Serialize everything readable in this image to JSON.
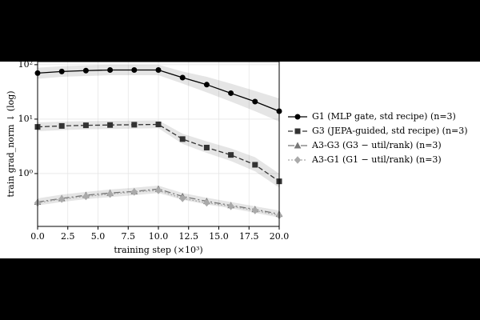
{
  "chart_data": {
    "type": "line",
    "x_label": "training step (×10³)",
    "y_label": "train grad_norm ↓  (log)",
    "log_y": true,
    "grid": true,
    "legend_position": "right",
    "x": [
      0,
      2,
      4,
      6,
      8,
      10,
      12,
      14,
      16,
      18,
      20
    ],
    "xlim": [
      0,
      20
    ],
    "xticks": [
      {
        "value": 0,
        "label": "0.0"
      },
      {
        "value": 2.5,
        "label": "2.5"
      },
      {
        "value": 5,
        "label": "5.0"
      },
      {
        "value": 7.5,
        "label": "7.5"
      },
      {
        "value": 10,
        "label": "10.0"
      },
      {
        "value": 12.5,
        "label": "12.5"
      },
      {
        "value": 15,
        "label": "15.0"
      },
      {
        "value": 17.5,
        "label": "17.5"
      },
      {
        "value": 20,
        "label": "20.0"
      }
    ],
    "ylim": [
      0.107,
      114
    ],
    "yticks": [
      {
        "value": 1,
        "label": "10⁰"
      },
      {
        "value": 10,
        "label": "10¹"
      },
      {
        "value": 100,
        "label": "10²"
      }
    ],
    "series": [
      {
        "name": "G1 (MLP gate, std recipe) (n=3)",
        "color": "#000000",
        "marker": "circle",
        "dash": "none",
        "values": [
          70,
          75,
          78,
          80,
          80,
          80,
          58,
          43,
          30,
          21,
          14
        ],
        "lower": [
          55,
          60,
          62,
          64,
          64,
          64,
          45,
          31,
          21,
          14,
          9
        ],
        "upper": [
          88,
          94,
          97,
          100,
          100,
          100,
          75,
          60,
          45,
          33,
          24
        ]
      },
      {
        "name": "G3 (JEPA-guided, std recipe) (n=3)",
        "color": "#333333",
        "marker": "square",
        "dash": "6,3",
        "values": [
          7.2,
          7.5,
          7.7,
          7.8,
          7.9,
          8.0,
          4.3,
          3.0,
          2.2,
          1.45,
          0.72
        ],
        "lower": [
          6.0,
          6.3,
          6.5,
          6.6,
          6.7,
          6.8,
          3.5,
          2.4,
          1.7,
          1.1,
          0.55
        ],
        "upper": [
          8.7,
          9.0,
          9.2,
          9.3,
          9.4,
          9.5,
          5.4,
          3.9,
          2.9,
          2.0,
          1.0
        ]
      },
      {
        "name": "A3-G3 (G3 − util/rank) (n=3)",
        "color": "#777777",
        "marker": "triangle",
        "dash": "8,3,2,3",
        "values": [
          0.3,
          0.35,
          0.4,
          0.44,
          0.47,
          0.52,
          0.38,
          0.31,
          0.26,
          0.22,
          0.18
        ],
        "lower": [
          0.26,
          0.3,
          0.34,
          0.37,
          0.4,
          0.44,
          0.33,
          0.27,
          0.23,
          0.19,
          0.155
        ],
        "upper": [
          0.35,
          0.41,
          0.46,
          0.51,
          0.55,
          0.6,
          0.44,
          0.36,
          0.3,
          0.25,
          0.21
        ]
      },
      {
        "name": "A3-G1 (G1 − util/rank) (n=3)",
        "color": "#aaaaaa",
        "marker": "diamond",
        "dash": "2,2",
        "values": [
          0.29,
          0.34,
          0.38,
          0.42,
          0.46,
          0.49,
          0.35,
          0.29,
          0.25,
          0.21,
          0.17
        ]
      }
    ]
  }
}
